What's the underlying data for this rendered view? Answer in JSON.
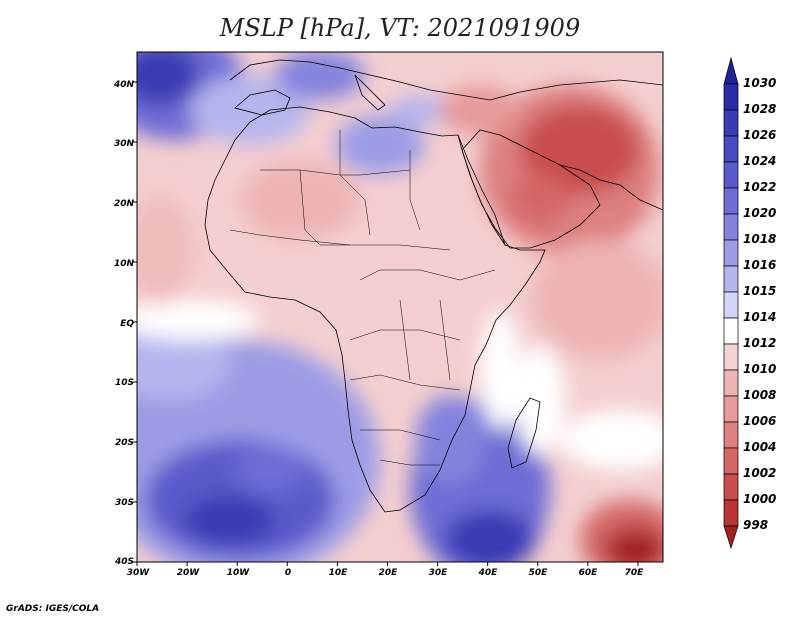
{
  "title": "MSLP [hPa], VT: 2021091909",
  "credit": "GrADS: IGES/COLA",
  "map": {
    "lat_labels": [
      "40N",
      "30N",
      "20N",
      "10N",
      "EQ",
      "10S",
      "20S",
      "30S",
      "40S"
    ],
    "lon_labels": [
      "30W",
      "20W",
      "10W",
      "0",
      "10E",
      "20E",
      "30E",
      "40E",
      "50E",
      "60E",
      "70E"
    ],
    "lat_range": [
      -40,
      45
    ],
    "lon_range": [
      -30,
      75
    ]
  },
  "colorbar": {
    "levels": [
      "1030",
      "1028",
      "1026",
      "1024",
      "1022",
      "1020",
      "1018",
      "1016",
      "1015",
      "1014",
      "1012",
      "1010",
      "1008",
      "1006",
      "1004",
      "1002",
      "1000",
      "998"
    ],
    "colors": [
      "#22229a",
      "#2c2ca8",
      "#3a3ab4",
      "#4949c0",
      "#5a5acb",
      "#6d6dd5",
      "#8383de",
      "#9c9ce6",
      "#b6b6ee",
      "#d4d4f6",
      "#ffffff",
      "#f5d2d2",
      "#eeb4b4",
      "#e69a9a",
      "#dd8080",
      "#d46666",
      "#c94d4d",
      "#bb3535",
      "#a32020"
    ]
  }
}
